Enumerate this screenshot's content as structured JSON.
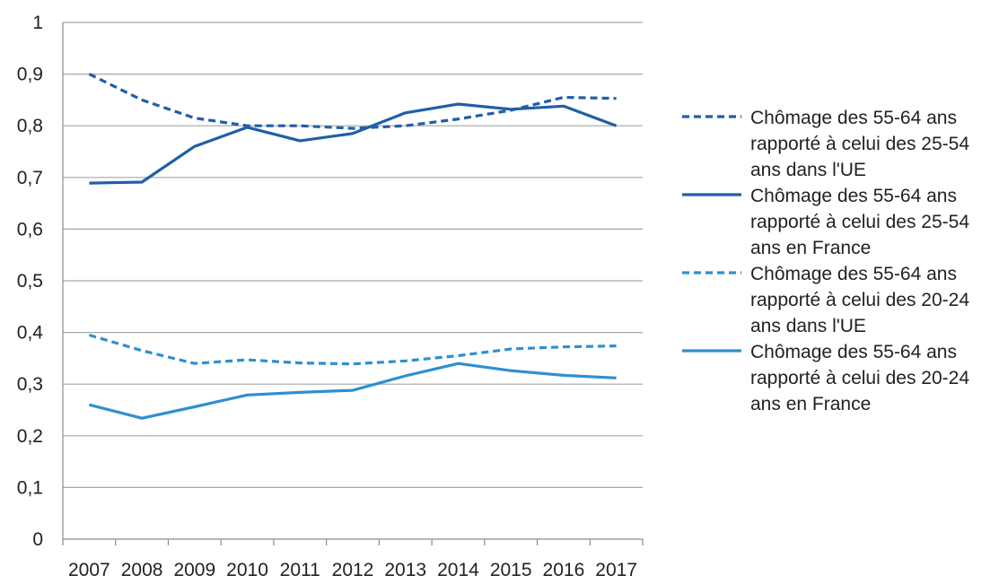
{
  "chart_data": {
    "type": "line",
    "x": [
      "2007",
      "2008",
      "2009",
      "2010",
      "2011",
      "2012",
      "2013",
      "2014",
      "2015",
      "2016",
      "2017"
    ],
    "ylim": [
      0,
      1
    ],
    "y_ticks": [
      "0",
      "0,1",
      "0,2",
      "0,3",
      "0,4",
      "0,5",
      "0,6",
      "0,7",
      "0,8",
      "0,9",
      "1"
    ],
    "grid": "horizontal",
    "legend_position": "right",
    "series": [
      {
        "name_lines": [
          "Chômage des 55-64 ans",
          "rapporté à celui des 25-54",
          "ans dans l'UE"
        ],
        "color": "#1f5fa8",
        "style": "dashed",
        "values": [
          0.9,
          0.85,
          0.815,
          0.8,
          0.8,
          0.795,
          0.8,
          0.813,
          0.83,
          0.855,
          0.853
        ]
      },
      {
        "name_lines": [
          "Chômage des 55-64 ans",
          "rapporté à celui des 25-54",
          "ans en France"
        ],
        "color": "#1f5fa8",
        "style": "solid",
        "values": [
          0.689,
          0.691,
          0.76,
          0.797,
          0.771,
          0.785,
          0.825,
          0.842,
          0.832,
          0.838,
          0.8
        ]
      },
      {
        "name_lines": [
          "Chômage des 55-64 ans",
          "rapporté à celui des 20-24",
          "ans dans l'UE"
        ],
        "color": "#2e8fd1",
        "style": "dashed",
        "values": [
          0.395,
          0.365,
          0.34,
          0.347,
          0.341,
          0.339,
          0.345,
          0.355,
          0.368,
          0.372,
          0.374
        ]
      },
      {
        "name_lines": [
          "Chômage des 55-64 ans",
          "rapporté à celui des 20-24",
          "ans en France"
        ],
        "color": "#2e8fd1",
        "style": "solid",
        "values": [
          0.26,
          0.234,
          0.256,
          0.279,
          0.284,
          0.288,
          0.316,
          0.34,
          0.326,
          0.317,
          0.312
        ]
      }
    ]
  }
}
